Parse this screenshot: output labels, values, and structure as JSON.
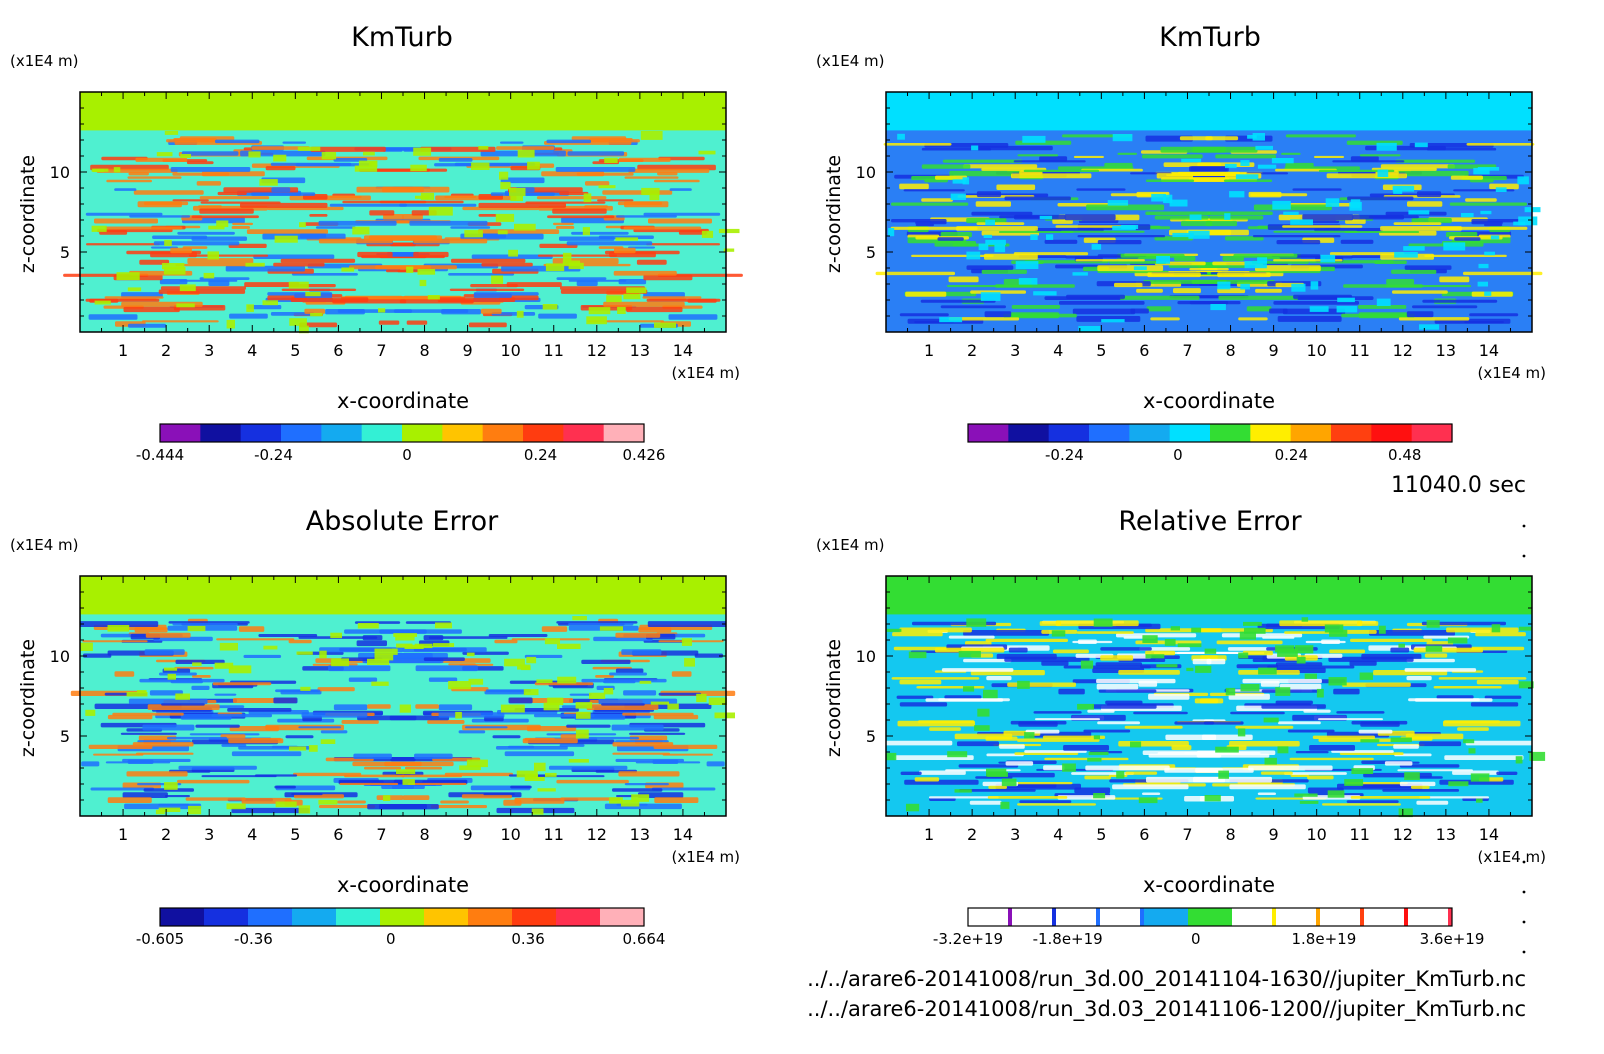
{
  "chart_data": [
    {
      "type": "heatmap",
      "title": "KmTurb",
      "xlabel": "x-coordinate",
      "ylabel": "z-coordinate",
      "x_unit": "(x1E4 m)",
      "y_unit": "(x1E4 m)",
      "xlim": [
        0,
        15
      ],
      "ylim": [
        0,
        15
      ],
      "xticks": [
        "1",
        "2",
        "3",
        "4",
        "5",
        "6",
        "7",
        "8",
        "9",
        "10",
        "11",
        "12",
        "13",
        "14"
      ],
      "yticks": [
        "5",
        "10"
      ],
      "colorbar": {
        "colors": [
          "#8a10b8",
          "#1010a0",
          "#1530e0",
          "#1f6fff",
          "#14aaf0",
          "#33f0d5",
          "#a8f000",
          "#ffc400",
          "#ff7d10",
          "#ff3c10",
          "#ff3050",
          "#ffb0b8"
        ],
        "tick_labels": [
          "-0.444",
          "-0.24",
          "0",
          "0.24",
          "0.426"
        ],
        "tick_values": [
          -0.444,
          -0.24,
          0,
          0.24,
          0.426
        ]
      },
      "field": {
        "background": "#a8f000",
        "band": "#4ff0d0",
        "accents": [
          "#ff7d10",
          "#1f6fff",
          "#ff3c10"
        ]
      }
    },
    {
      "type": "heatmap",
      "title": "KmTurb",
      "xlabel": "x-coordinate",
      "ylabel": "z-coordinate",
      "x_unit": "(x1E4 m)",
      "y_unit": "(x1E4 m)",
      "xlim": [
        0,
        15
      ],
      "ylim": [
        0,
        15
      ],
      "xticks": [
        "1",
        "2",
        "3",
        "4",
        "5",
        "6",
        "7",
        "8",
        "9",
        "10",
        "11",
        "12",
        "13",
        "14"
      ],
      "yticks": [
        "5",
        "10"
      ],
      "colorbar": {
        "colors": [
          "#8a10b8",
          "#1010a0",
          "#1530e0",
          "#1f6fff",
          "#14aaf0",
          "#00e0ff",
          "#33dd33",
          "#ffee00",
          "#ffa500",
          "#ff4010",
          "#ff1010",
          "#ff3050"
        ],
        "tick_labels": [
          "-0.24",
          "0",
          "0.24",
          "0.48"
        ],
        "tick_values": [
          -0.24,
          0,
          0.24,
          0.48
        ]
      },
      "field": {
        "background": "#00e0ff",
        "band": "#2a7ff5",
        "accents": [
          "#1530e0",
          "#ffee00",
          "#33dd33"
        ]
      }
    },
    {
      "type": "heatmap",
      "title": "Absolute Error",
      "xlabel": "x-coordinate",
      "ylabel": "z-coordinate",
      "x_unit": "(x1E4 m)",
      "y_unit": "(x1E4 m)",
      "xlim": [
        0,
        15
      ],
      "ylim": [
        0,
        15
      ],
      "xticks": [
        "1",
        "2",
        "3",
        "4",
        "5",
        "6",
        "7",
        "8",
        "9",
        "10",
        "11",
        "12",
        "13",
        "14"
      ],
      "yticks": [
        "5",
        "10"
      ],
      "colorbar": {
        "colors": [
          "#1010a0",
          "#1530e0",
          "#1f6fff",
          "#14aaf0",
          "#33f0d5",
          "#a8f000",
          "#ffc400",
          "#ff7d10",
          "#ff3c10",
          "#ff3050",
          "#ffb0b8"
        ],
        "tick_labels": [
          "-0.605",
          "-0.36",
          "0",
          "0.36",
          "0.664"
        ],
        "tick_values": [
          -0.605,
          -0.36,
          0,
          0.36,
          0.664
        ]
      },
      "field": {
        "background": "#a8f000",
        "band": "#4ff0d0",
        "accents": [
          "#1f6fff",
          "#ff7d10",
          "#1530e0"
        ]
      }
    },
    {
      "type": "heatmap",
      "title": "Relative Error",
      "xlabel": "x-coordinate",
      "ylabel": "z-coordinate",
      "x_unit": "(x1E4 m)",
      "y_unit": "(x1E4 m)",
      "xlim": [
        0,
        15
      ],
      "ylim": [
        0,
        15
      ],
      "xticks": [
        "1",
        "2",
        "3",
        "4",
        "5",
        "6",
        "7",
        "8",
        "9",
        "10",
        "11",
        "12",
        "13",
        "14"
      ],
      "yticks": [
        "5",
        "10"
      ],
      "colorbar": {
        "colors": [
          "#ffffff",
          "#ffffff",
          "#ffffff",
          "#ffffff",
          "#14aaf0",
          "#33dd33",
          "#ffffff",
          "#ffffff",
          "#ffffff",
          "#ffffff",
          "#ffffff"
        ],
        "stripes": [
          "#8a10b8",
          "#1530e0",
          "#1f6fff",
          "#1f6fff",
          "",
          "",
          "#ffee00",
          "#ffa500",
          "#ff4010",
          "#ff1010",
          "#ff3050"
        ],
        "tick_labels": [
          "-3.2e+19",
          "-1.8e+19",
          "0",
          "1.8e+19",
          "3.6e+19"
        ],
        "tick_values": [
          -3.2e+19,
          -1.8e+19,
          0,
          1.8e+19,
          3.6e+19
        ]
      },
      "field": {
        "background": "#33dd33",
        "band": "#14c8f0",
        "accents": [
          "#1530e0",
          "#ffee00",
          "#ffffff"
        ]
      }
    }
  ],
  "time_label": "11040.0 sec",
  "files": [
    "../../arare6-20141008/run_3d.00_20141104-1630//jupiter_KmTurb.nc",
    "../../arare6-20141008/run_3d.03_20141106-1200//jupiter_KmTurb.nc"
  ]
}
